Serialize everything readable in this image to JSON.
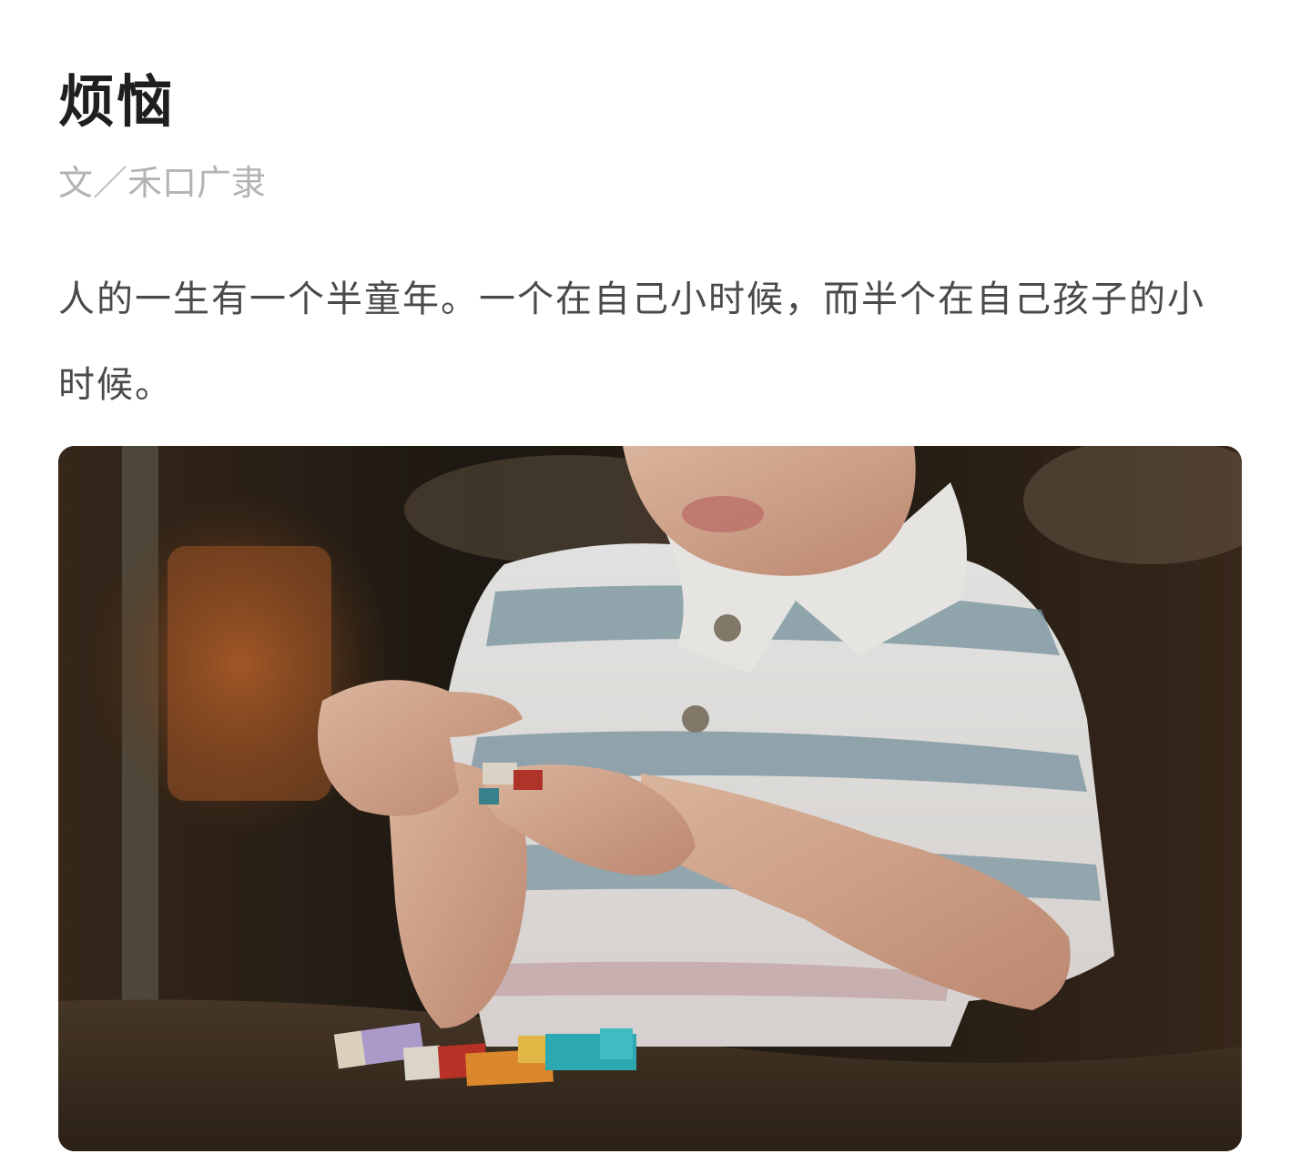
{
  "article": {
    "title": "烦恼",
    "byline": "文／禾口广隶",
    "paragraph": "人的一生有一个半童年。一个在自己小时候，而半个在自己孩子的小时候。"
  },
  "photo": {
    "subject": "child-playing-with-blocks"
  }
}
